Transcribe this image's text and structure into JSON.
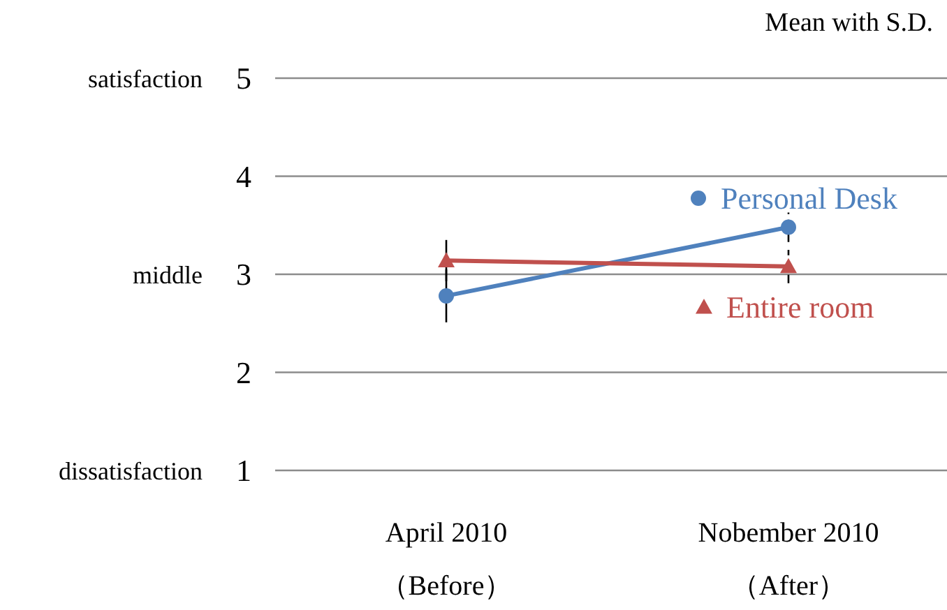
{
  "chart_data": {
    "type": "line",
    "title": "Mean with S.D.",
    "categories": [
      "April 2010\n（Before）",
      "Nobember 2010\n（After）"
    ],
    "series": [
      {
        "name": "Personal Desk",
        "color": "#4f81bd",
        "marker": "circle",
        "values": [
          2.78,
          3.48
        ],
        "errors": [
          0.27,
          0.15
        ]
      },
      {
        "name": "Entire room",
        "color": "#c0504d",
        "marker": "triangle",
        "values": [
          3.14,
          3.08
        ],
        "errors": [
          0.21,
          0.17
        ]
      }
    ],
    "ylim": [
      1,
      5
    ],
    "yticks": [
      1,
      2,
      3,
      4,
      5
    ],
    "grid": "y",
    "legend": "right",
    "annotations": [
      "satisfaction",
      "middle",
      "dissatisfaction"
    ]
  }
}
